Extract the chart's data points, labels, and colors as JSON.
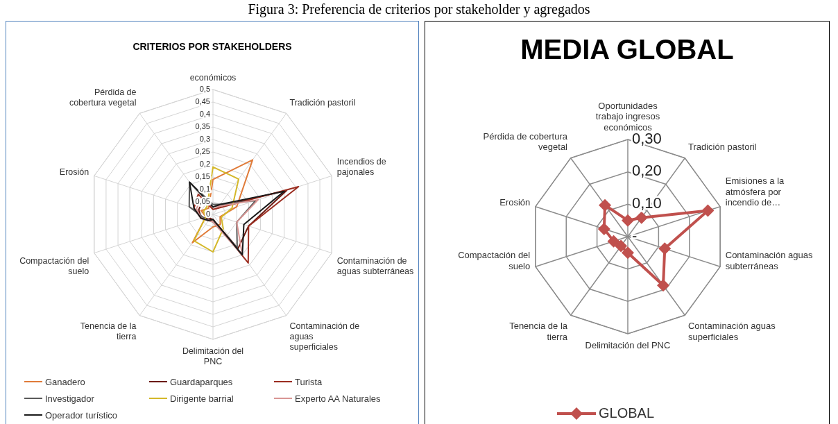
{
  "chart_data": [
    {
      "type": "radar",
      "title": "CRITERIOS POR STAKEHOLDERS",
      "annotations": [
        "Figura 3: Preferencia de criterios por stakeholder y agregados"
      ],
      "categories": [
        "económicos",
        "Tradición pastoril",
        "Incendios de pajonales",
        "Contaminación de aguas subterráneas",
        "Contaminación de aguas superficiales",
        "Delimitación del PNC",
        "Tenencia de la tierra",
        "Compactación del suelo",
        "Erosión",
        "Pérdida de cobertura vegetal"
      ],
      "series": [
        {
          "name": "Ganadero",
          "color": "#e07b39",
          "values": [
            0.14,
            0.27,
            0.1,
            0.03,
            0.05,
            0.05,
            0.14,
            0.03,
            0.05,
            0.03
          ]
        },
        {
          "name": "Guardaparques",
          "color": "#6b1a12",
          "values": [
            0.03,
            0.04,
            0.31,
            0.15,
            0.17,
            0.02,
            0.02,
            0.05,
            0.06,
            0.07
          ]
        },
        {
          "name": "Turista",
          "color": "#9b2d20",
          "values": [
            0.02,
            0.03,
            0.36,
            0.15,
            0.24,
            0.02,
            0.03,
            0.05,
            0.08,
            0.1
          ]
        },
        {
          "name": "Investigador",
          "color": "#595959",
          "values": [
            0.04,
            0.05,
            0.18,
            0.1,
            0.165,
            0.03,
            0.03,
            0.04,
            0.1,
            0.16
          ]
        },
        {
          "name": "Dirigente barrial",
          "color": "#d4b82a",
          "values": [
            0.19,
            0.175,
            0.08,
            0.035,
            0.07,
            0.15,
            0.13,
            0.03,
            0.04,
            0.04
          ]
        },
        {
          "name": "Experto AA Naturales",
          "color": "#d99694",
          "values": [
            0.03,
            0.04,
            0.19,
            0.1,
            0.2,
            0.03,
            0.03,
            0.05,
            0.07,
            0.08
          ]
        },
        {
          "name": "Operador turístico",
          "color": "#1a1a1a",
          "values": [
            0.03,
            0.05,
            0.3,
            0.13,
            0.2,
            0.02,
            0.03,
            0.05,
            0.08,
            0.16
          ]
        }
      ],
      "ylim": [
        0,
        0.5
      ],
      "yticks": [
        {
          "value": 0,
          "label": "0"
        },
        {
          "value": 0.05,
          "label": "0,05"
        },
        {
          "value": 0.1,
          "label": "0,1"
        },
        {
          "value": 0.15,
          "label": "0,15"
        },
        {
          "value": 0.2,
          "label": "0,2"
        },
        {
          "value": 0.25,
          "label": "0,25"
        },
        {
          "value": 0.3,
          "label": "0,3"
        },
        {
          "value": 0.35,
          "label": "0,35"
        },
        {
          "value": 0.4,
          "label": "0,4"
        },
        {
          "value": 0.45,
          "label": "0,45"
        },
        {
          "value": 0.5,
          "label": "0,5"
        }
      ],
      "grid": true,
      "legend": "bottom",
      "marker": "none"
    },
    {
      "type": "radar",
      "title": "MEDIA GLOBAL",
      "categories": [
        "Oportunidades trabajo ingresos económicos",
        "Tradición pastoril",
        "Emisiones a la atmósfera por incendio de…",
        "Contaminación aguas subterráneas",
        "Contaminación aguas superficiales",
        "Delimitación del PNC",
        "Tenencia de la tierra",
        "Compactación del suelo",
        "Erosión",
        "Pérdida de cobertura vegetal"
      ],
      "series": [
        {
          "name": "GLOBAL",
          "color": "#c0504d",
          "values": [
            0.05,
            0.072,
            0.26,
            0.12,
            0.186,
            0.05,
            0.036,
            0.046,
            0.077,
            0.12
          ]
        }
      ],
      "ylim": [
        0,
        0.3
      ],
      "yticks": [
        {
          "value": 0,
          "label": "-"
        },
        {
          "value": 0.1,
          "label": "0,10"
        },
        {
          "value": 0.2,
          "label": "0,20"
        },
        {
          "value": 0.3,
          "label": "0,30"
        }
      ],
      "grid": true,
      "legend": "bottom",
      "marker": "diamond"
    }
  ]
}
